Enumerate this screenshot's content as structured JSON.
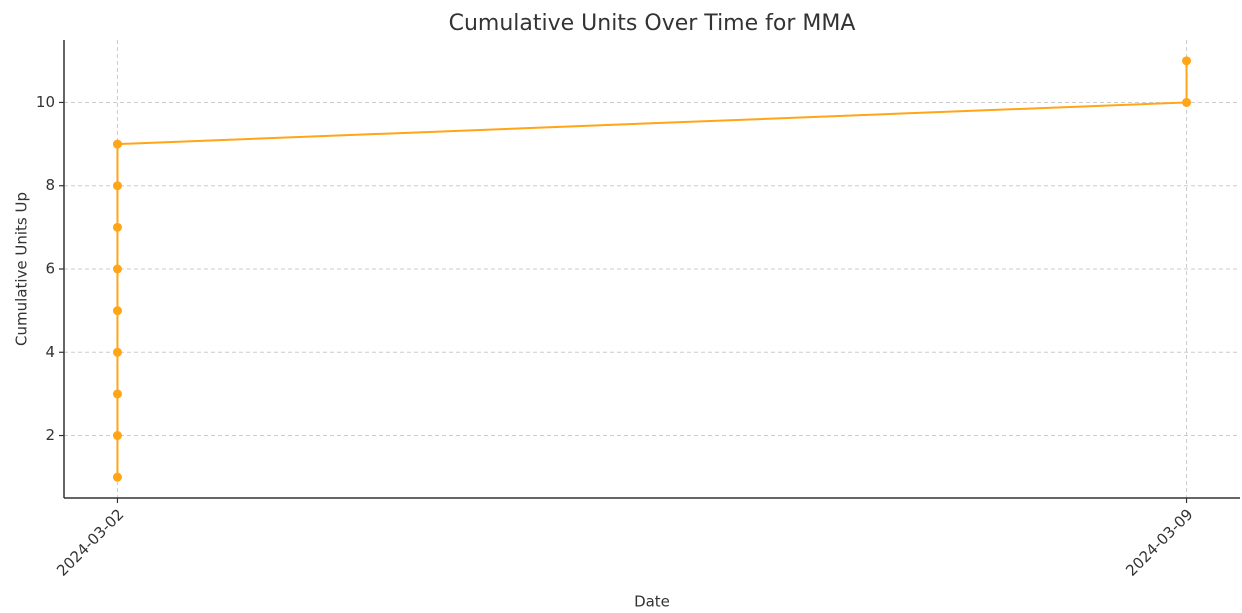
{
  "chart_data": {
    "type": "line",
    "title": "Cumulative Units Over Time for MMA",
    "x_label": "Date",
    "y_label": "Cumulative Units Up",
    "x": [
      "2024-03-02",
      "2024-03-02",
      "2024-03-02",
      "2024-03-02",
      "2024-03-02",
      "2024-03-02",
      "2024-03-02",
      "2024-03-02",
      "2024-03-02",
      "2024-03-09",
      "2024-03-09"
    ],
    "series": [
      {
        "color": "#ffa516",
        "values": [
          1,
          2,
          3,
          4,
          5,
          6,
          7,
          8,
          9,
          10,
          11
        ]
      }
    ],
    "xticks": [
      "2024-03-02",
      "2024-03-09"
    ],
    "ylim": [
      0.5,
      11.5
    ],
    "yticks": [
      2,
      4,
      6,
      8,
      10
    ],
    "grid": true
  }
}
